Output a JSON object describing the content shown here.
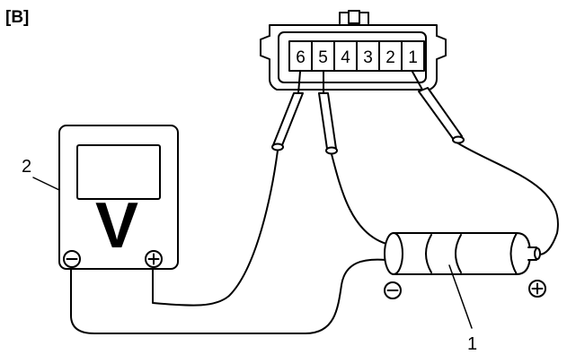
{
  "figure": {
    "label": "[B]"
  },
  "connector": {
    "pins": [
      "6",
      "5",
      "4",
      "3",
      "2",
      "1"
    ]
  },
  "meter": {
    "display_symbol": "V",
    "negative_terminal": "⊖",
    "positive_terminal": "⊕"
  },
  "battery": {
    "negative_symbol": "⊖",
    "positive_symbol": "⊕"
  },
  "callouts": {
    "meter": "2",
    "battery": "1"
  },
  "colors": {
    "line": "#000000",
    "background": "#ffffff"
  }
}
